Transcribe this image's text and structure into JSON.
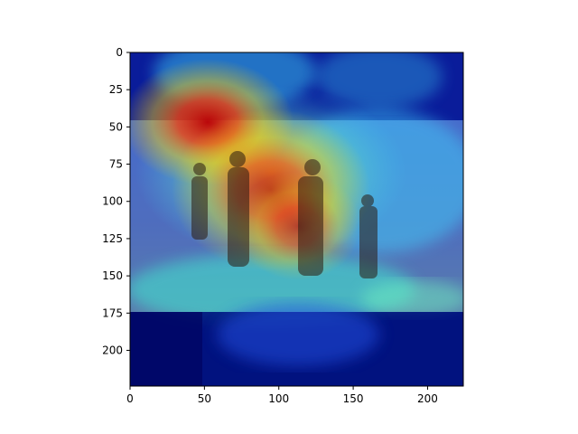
{
  "chart_data": {
    "type": "heatmap",
    "title": "",
    "xlabel": "",
    "ylabel": "",
    "xlim": [
      0,
      224
    ],
    "ylim": [
      224,
      0
    ],
    "x_ticks": [
      0,
      50,
      100,
      150,
      200
    ],
    "y_ticks": [
      0,
      25,
      50,
      75,
      100,
      125,
      150,
      175,
      200
    ],
    "colormap": "jet",
    "overlay": "photo of people standing on a hillside with a grad-cam heatmap",
    "hotspot_regions": [
      {
        "x": 48,
        "y": 42,
        "intensity": 1.0
      },
      {
        "x": 78,
        "y": 75,
        "intensity": 0.85
      },
      {
        "x": 100,
        "y": 85,
        "intensity": 0.8
      },
      {
        "x": 125,
        "y": 95,
        "intensity": 0.75
      }
    ],
    "photo_band_y": [
      46,
      174
    ]
  },
  "colors": {
    "deep_blue": "#00007f",
    "blue": "#1f4cff",
    "cyan": "#3fd8f0",
    "yellow": "#f2e53a",
    "red": "#d40000"
  }
}
